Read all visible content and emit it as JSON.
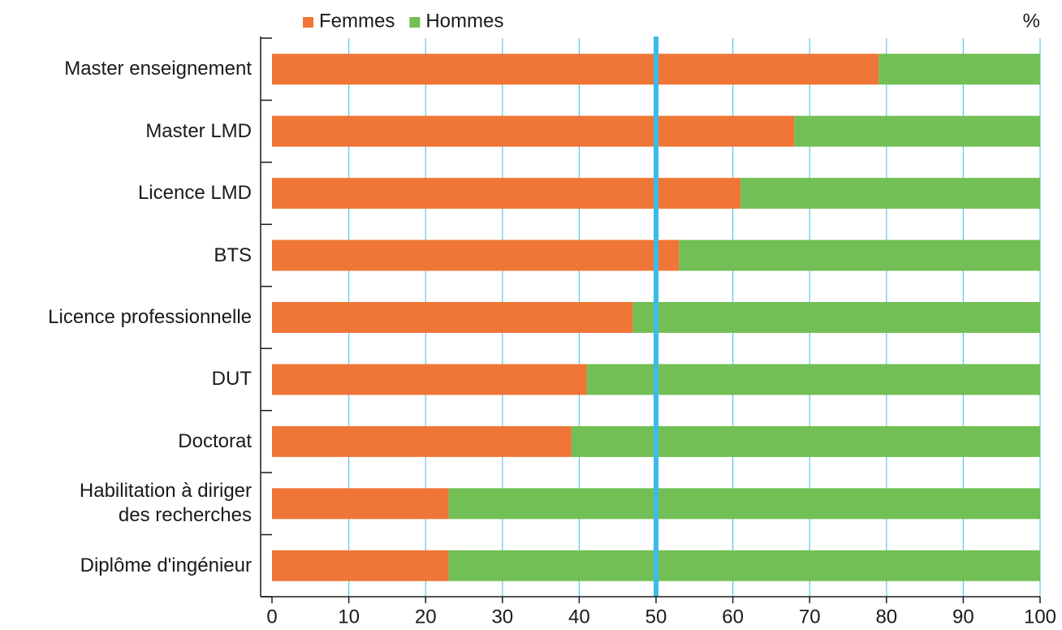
{
  "chart_data": {
    "type": "stacked_bar_horizontal",
    "categories": [
      "Master enseignement",
      "Master LMD",
      "Licence LMD",
      "BTS",
      "Licence professionnelle",
      "DUT",
      "Doctorat",
      "Habilitation à diriger\ndes recherches",
      "Diplôme d'ingénieur"
    ],
    "series": [
      {
        "name": "Femmes",
        "color": "#ef7636",
        "values": [
          79,
          68,
          61,
          53,
          47,
          41,
          39,
          23,
          23
        ]
      },
      {
        "name": "Hommes",
        "color": "#72bf55",
        "values": [
          21,
          32,
          39,
          47,
          53,
          59,
          61,
          77,
          77
        ]
      }
    ],
    "x_label": "%",
    "xlim": [
      0,
      100
    ],
    "xticks": [
      0,
      10,
      20,
      30,
      40,
      50,
      60,
      70,
      80,
      90,
      100
    ],
    "grid": true,
    "grid_color": "#5bc8ee",
    "reference_line": 50,
    "reference_color": "#3bbbe8",
    "legend": "top"
  }
}
